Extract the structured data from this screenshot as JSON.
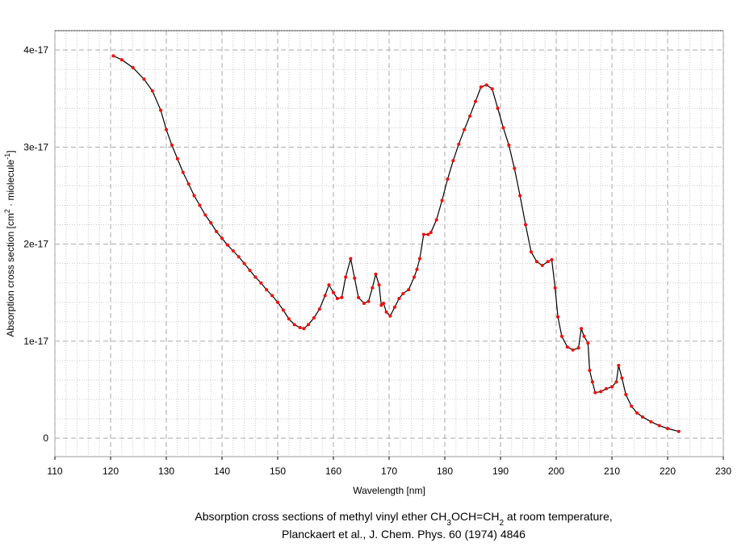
{
  "chart_data": {
    "type": "line",
    "xlabel": "Wavelength [nm]",
    "ylabel": [
      "Absorption cross section [cm",
      "2",
      " · miolecule",
      "-1",
      "]"
    ],
    "caption": [
      [
        "Absorption cross sections of methyl vinyl ether CH",
        "3",
        "OCH=CH",
        "2",
        " at room temperature,"
      ],
      "Planckaert et al., J. Chem. Phys. 60 (1974) 4846"
    ],
    "x": [
      120.5,
      122,
      124,
      126,
      127.5,
      129,
      130,
      131,
      132,
      133,
      134,
      135,
      136,
      137,
      138,
      139,
      140,
      141,
      142,
      143,
      144,
      145,
      146,
      147,
      148,
      149,
      150,
      151,
      152,
      153,
      154,
      154.7,
      155.5,
      156.5,
      157.5,
      158.5,
      159.2,
      160,
      160.7,
      161.5,
      162.2,
      163.1,
      163.8,
      164.5,
      165.5,
      166.3,
      167,
      167.6,
      168.2,
      168.6,
      169,
      169.5,
      170.2,
      171,
      171.8,
      172.5,
      173.5,
      174.5,
      175,
      175.5,
      176.2,
      177,
      177.5,
      178.5,
      179.5,
      180.5,
      181.5,
      182.5,
      183.5,
      184.5,
      185.5,
      186.5,
      187.5,
      188.5,
      189.5,
      190.5,
      191.5,
      192.5,
      193.5,
      194.5,
      195.5,
      196.5,
      197.5,
      198.5,
      199.2,
      199.8,
      200.3,
      201,
      202,
      203,
      204,
      204.5,
      205,
      205.7,
      206,
      206.5,
      207,
      208,
      209,
      210,
      210.8,
      211.2,
      211.8,
      212.5,
      213.5,
      214.5,
      215.5,
      217,
      218.5,
      220,
      222
    ],
    "values": [
      3.94e-17,
      3.9e-17,
      3.82e-17,
      3.7e-17,
      3.58e-17,
      3.38e-17,
      3.18e-17,
      3.02e-17,
      2.88e-17,
      2.74e-17,
      2.62e-17,
      2.5e-17,
      2.4e-17,
      2.3e-17,
      2.22e-17,
      2.13e-17,
      2.06e-17,
      1.99e-17,
      1.93e-17,
      1.87e-17,
      1.8e-17,
      1.73e-17,
      1.66e-17,
      1.6e-17,
      1.53e-17,
      1.47e-17,
      1.4e-17,
      1.32e-17,
      1.23e-17,
      1.17e-17,
      1.14e-17,
      1.13e-17,
      1.17e-17,
      1.24e-17,
      1.33e-17,
      1.47e-17,
      1.58e-17,
      1.5e-17,
      1.44e-17,
      1.45e-17,
      1.66e-17,
      1.85e-17,
      1.65e-17,
      1.45e-17,
      1.39e-17,
      1.41e-17,
      1.55e-17,
      1.69e-17,
      1.58e-17,
      1.37e-17,
      1.39e-17,
      1.3e-17,
      1.26e-17,
      1.35e-17,
      1.44e-17,
      1.49e-17,
      1.53e-17,
      1.66e-17,
      1.74e-17,
      1.85e-17,
      2.1e-17,
      2.1e-17,
      2.12e-17,
      2.25e-17,
      2.45e-17,
      2.67e-17,
      2.86e-17,
      3.03e-17,
      3.18e-17,
      3.32e-17,
      3.47e-17,
      3.62e-17,
      3.64e-17,
      3.6e-17,
      3.4e-17,
      3.2e-17,
      3.02e-17,
      2.78e-17,
      2.5e-17,
      2.2e-17,
      1.92e-17,
      1.82e-17,
      1.78e-17,
      1.82e-17,
      1.84e-17,
      1.55e-17,
      1.25e-17,
      1.05e-17,
      9.4e-18,
      9.1e-18,
      9.3e-18,
      1.13e-17,
      1.05e-17,
      9.8e-18,
      7e-18,
      5.8e-18,
      4.7e-18,
      4.8e-18,
      5.1e-18,
      5.3e-18,
      5.8e-18,
      7.5e-18,
      6.2e-18,
      4.5e-18,
      3.3e-18,
      2.6e-18,
      2.2e-18,
      1.7e-18,
      1.3e-18,
      1e-18,
      7e-19
    ],
    "line_color": "#000000",
    "marker_color": "#ff0000",
    "xlim": [
      110,
      230
    ],
    "xticks": [
      110,
      120,
      130,
      140,
      150,
      160,
      170,
      180,
      190,
      200,
      210,
      220,
      230
    ],
    "ylim": [
      -1.9e-18,
      4.2e-17
    ],
    "yticks": [
      0,
      1e-17,
      2e-17,
      3e-17,
      4e-17
    ],
    "grid": true
  }
}
